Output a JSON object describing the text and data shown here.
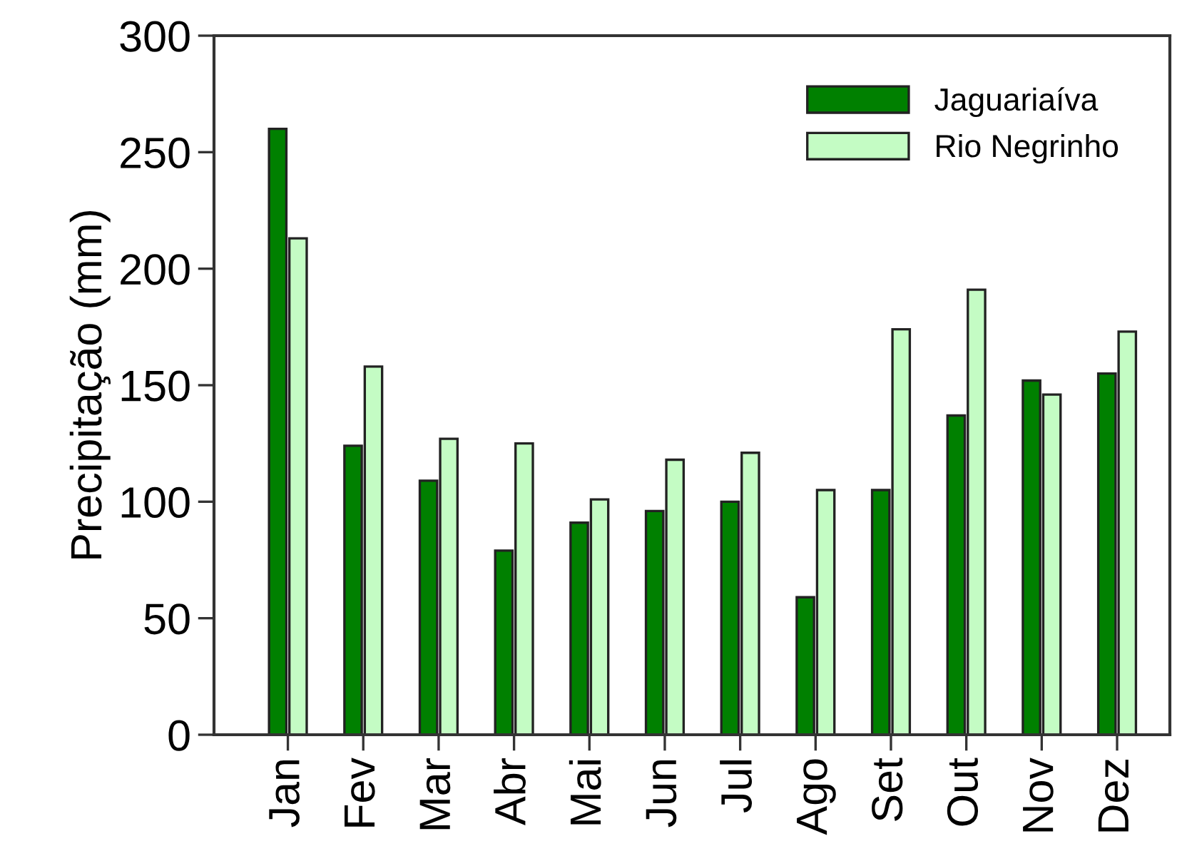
{
  "chart_data": {
    "type": "bar",
    "ylabel": "Precipitação (mm)",
    "categories": [
      "Jan",
      "Fev",
      "Mar",
      "Abr",
      "Mai",
      "Jun",
      "Jul",
      "Ago",
      "Set",
      "Out",
      "Nov",
      "Dez"
    ],
    "series": [
      {
        "name": "Jaguariaíva",
        "color": "#008000",
        "values": [
          260,
          124,
          109,
          79,
          91,
          96,
          100,
          59,
          105,
          137,
          152,
          155
        ]
      },
      {
        "name": "Rio Negrinho",
        "color": "#c4fcc4",
        "values": [
          213,
          158,
          127,
          125,
          101,
          118,
          121,
          105,
          174,
          191,
          146,
          173
        ]
      }
    ],
    "ylim": [
      0,
      300
    ],
    "yticks": [
      0,
      50,
      100,
      150,
      200,
      250,
      300
    ],
    "grid": false,
    "legend": "top right"
  }
}
